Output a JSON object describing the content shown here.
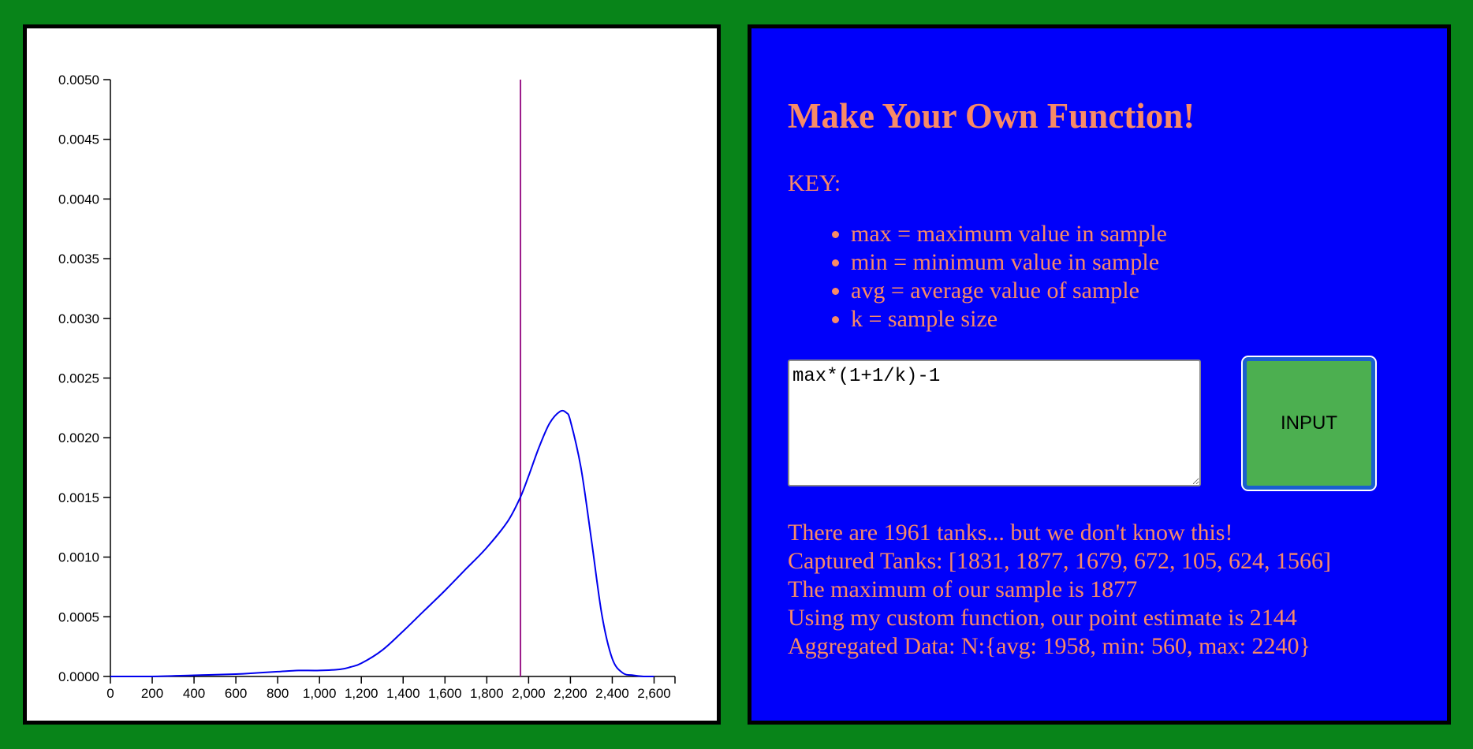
{
  "chart_data": {
    "type": "area",
    "title": "",
    "xlabel": "",
    "ylabel": "",
    "xlim": [
      0,
      2700
    ],
    "ylim": [
      0,
      0.005
    ],
    "x_ticks": [
      0,
      200,
      400,
      600,
      800,
      1000,
      1200,
      1400,
      1600,
      1800,
      2000,
      2200,
      2400,
      2600
    ],
    "x_tick_labels": [
      "0",
      "200",
      "400",
      "600",
      "800",
      "1,000",
      "1,200",
      "1,400",
      "1,600",
      "1,800",
      "2,000",
      "2,200",
      "2,400",
      "2,600"
    ],
    "y_ticks": [
      0,
      0.0005,
      0.001,
      0.0015,
      0.002,
      0.0025,
      0.003,
      0.0035,
      0.004,
      0.0045,
      0.005
    ],
    "y_tick_labels": [
      "0.0000",
      "0.0005",
      "0.0010",
      "0.0015",
      "0.0020",
      "0.0025",
      "0.0030",
      "0.0035",
      "0.0040",
      "0.0045",
      "0.0050"
    ],
    "grid": false,
    "series": [
      {
        "color": "#0000ee",
        "x": [
          0,
          200,
          400,
          600,
          700,
          800,
          900,
          1000,
          1100,
          1150,
          1200,
          1300,
          1400,
          1500,
          1600,
          1700,
          1800,
          1900,
          1960,
          2000,
          2050,
          2100,
          2150,
          2180,
          2200,
          2250,
          2300,
          2350,
          2400,
          2450,
          2500,
          2550,
          2600
        ],
        "y": [
          0,
          0,
          1e-05,
          2e-05,
          3e-05,
          4e-05,
          5e-05,
          5e-05,
          6e-05,
          8e-05,
          0.00011,
          0.00022,
          0.00038,
          0.00055,
          0.00072,
          0.0009,
          0.00108,
          0.0013,
          0.0015,
          0.00168,
          0.00192,
          0.00212,
          0.00222,
          0.00221,
          0.00214,
          0.00175,
          0.00115,
          0.00052,
          0.00015,
          3e-05,
          1e-05,
          0,
          0
        ]
      }
    ],
    "reference_line": {
      "x": 1961,
      "color": "#9c1a8a"
    }
  },
  "panel": {
    "title": "Make Your Own Function!",
    "key_label": "KEY:",
    "key_items": [
      "max = maximum value in sample",
      "min = minimum value in sample",
      "avg = average value of sample",
      "k = sample size"
    ],
    "function_input": "max*(1+1/k)-1",
    "button_label": "INPUT",
    "results": [
      "There are 1961 tanks... but we don't know this!",
      "Captured Tanks: [1831, 1877, 1679, 672, 105, 624, 1566]",
      "The maximum of our sample is 1877",
      "Using my custom function, our point estimate is 2144",
      "Aggregated Data: N:{avg: 1958, min: 560, max: 2240}"
    ]
  },
  "colors": {
    "page_background": "#088419",
    "panel_background": "#0000fa",
    "text_accent": "#f88a66",
    "button_fill": "#4caf50"
  }
}
